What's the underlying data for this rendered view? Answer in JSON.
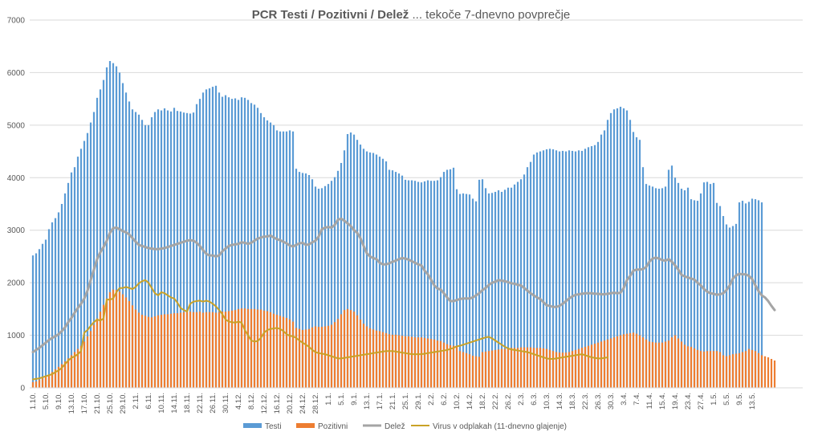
{
  "chart_data": {
    "type": "bar",
    "title_bold": "PCR Testi / Pozitivni / Delež",
    "title_rest": " ... tekoče 7-dnevno povprečje",
    "ylim": [
      0,
      7000
    ],
    "yticks": [
      "0",
      "1000",
      "2000",
      "3000",
      "4000",
      "5000",
      "6000",
      "7000"
    ],
    "colors": {
      "testi": "#5b9bd5",
      "pozitivni": "#ed7d31",
      "delez": "#a5a5a5",
      "virus": "#c9a227",
      "grid": "#d9d9d9",
      "text": "#595959"
    },
    "total_days": 232,
    "xtick_every": 4,
    "xtick_labels": [
      "1.10.",
      "5.10.",
      "9.10.",
      "13.10.",
      "17.10.",
      "21.10.",
      "25.10.",
      "29.10.",
      "2.11.",
      "6.11.",
      "10.11.",
      "14.11.",
      "18.11.",
      "22.11.",
      "26.11.",
      "30.11.",
      "4.12.",
      "8.12.",
      "12.12.",
      "16.12.",
      "20.12.",
      "24.12.",
      "28.12.",
      "1.1.",
      "5.1.",
      "9.1.",
      "13.1.",
      "17.1.",
      "21.1.",
      "25.1.",
      "29.1.",
      "2.2.",
      "6.2.",
      "10.2.",
      "14.2.",
      "18.2.",
      "22.2.",
      "26.2.",
      "2.3.",
      "6.3.",
      "10.3.",
      "14.3.",
      "18.3.",
      "22.3.",
      "26.3.",
      "30.3.",
      "3.4.",
      "7.4.",
      "11.4.",
      "15.4.",
      "19.4.",
      "23.4.",
      "27.4.",
      "1.5.",
      "5.5.",
      "9.5.",
      "13.5."
    ],
    "legend": [
      "Testi",
      "Pozitivni",
      "Delež",
      "Virus v odplakah (11-dnevno glajenje)"
    ],
    "series": [
      {
        "name": "Testi",
        "kind": "bar",
        "values": [
          2520,
          2560,
          2640,
          2740,
          2820,
          3020,
          3150,
          3230,
          3340,
          3500,
          3700,
          3900,
          4100,
          4200,
          4400,
          4550,
          4700,
          4850,
          5050,
          5250,
          5520,
          5680,
          5860,
          6100,
          6220,
          6180,
          6120,
          6000,
          5800,
          5620,
          5450,
          5300,
          5250,
          5200,
          5100,
          5000,
          5000,
          5150,
          5250,
          5300,
          5280,
          5320,
          5280,
          5260,
          5330,
          5270,
          5260,
          5240,
          5230,
          5220,
          5240,
          5400,
          5500,
          5620,
          5680,
          5700,
          5730,
          5750,
          5620,
          5540,
          5570,
          5530,
          5500,
          5510,
          5480,
          5530,
          5520,
          5480,
          5420,
          5390,
          5330,
          5230,
          5150,
          5090,
          5050,
          5000,
          4900,
          4880,
          4880,
          4880,
          4900,
          4880,
          4170,
          4110,
          4090,
          4080,
          4050,
          3970,
          3830,
          3790,
          3800,
          3840,
          3880,
          3940,
          4010,
          4130,
          4280,
          4520,
          4830,
          4860,
          4820,
          4720,
          4630,
          4550,
          4500,
          4480,
          4470,
          4440,
          4400,
          4360,
          4310,
          4150,
          4140,
          4110,
          4080,
          4040,
          3960,
          3950,
          3950,
          3940,
          3920,
          3910,
          3930,
          3950,
          3940,
          3940,
          3950,
          4010,
          4110,
          4150,
          4160,
          4190,
          3780,
          3690,
          3700,
          3690,
          3680,
          3600,
          3550,
          3960,
          3970,
          3800,
          3700,
          3710,
          3730,
          3760,
          3730,
          3770,
          3810,
          3810,
          3870,
          3920,
          3970,
          4060,
          4200,
          4300,
          4440,
          4480,
          4500,
          4520,
          4540,
          4550,
          4540,
          4520,
          4500,
          4510,
          4500,
          4520,
          4510,
          4500,
          4520,
          4510,
          4550,
          4580,
          4600,
          4620,
          4680,
          4820,
          4900,
          5100,
          5230,
          5300,
          5320,
          5350,
          5320,
          5280,
          5100,
          4870,
          4770,
          4720,
          4200,
          3880,
          3850,
          3830,
          3800,
          3790,
          3800,
          3830,
          4150,
          4230,
          4000,
          3900,
          3790,
          3760,
          3810,
          3590,
          3570,
          3560,
          3700,
          3910,
          3920,
          3880,
          3900,
          3520,
          3460,
          3270,
          3110,
          3050,
          3080,
          3120,
          3530,
          3560,
          3510,
          3540,
          3600,
          3590,
          3570,
          3530
        ]
      },
      {
        "name": "Pozitivni",
        "kind": "bar",
        "values": [
          110,
          120,
          150,
          180,
          210,
          250,
          300,
          350,
          400,
          450,
          500,
          560,
          620,
          680,
          740,
          800,
          880,
          980,
          1080,
          1200,
          1320,
          1450,
          1580,
          1700,
          1820,
          1870,
          1860,
          1830,
          1780,
          1720,
          1650,
          1570,
          1490,
          1430,
          1390,
          1370,
          1350,
          1340,
          1360,
          1380,
          1390,
          1400,
          1400,
          1410,
          1420,
          1420,
          1430,
          1440,
          1440,
          1450,
          1440,
          1440,
          1450,
          1430,
          1440,
          1440,
          1440,
          1430,
          1440,
          1450,
          1450,
          1460,
          1470,
          1480,
          1500,
          1510,
          1510,
          1500,
          1500,
          1500,
          1490,
          1490,
          1470,
          1460,
          1440,
          1410,
          1390,
          1370,
          1350,
          1330,
          1300,
          1260,
          1140,
          1120,
          1100,
          1110,
          1120,
          1150,
          1170,
          1160,
          1160,
          1170,
          1180,
          1200,
          1250,
          1310,
          1400,
          1480,
          1500,
          1480,
          1450,
          1380,
          1300,
          1220,
          1170,
          1130,
          1110,
          1090,
          1080,
          1060,
          1040,
          1020,
          1010,
          1010,
          1000,
          990,
          980,
          980,
          970,
          960,
          960,
          960,
          950,
          940,
          930,
          920,
          900,
          890,
          860,
          830,
          810,
          800,
          780,
          700,
          680,
          660,
          640,
          610,
          600,
          590,
          680,
          690,
          700,
          710,
          720,
          730,
          740,
          740,
          750,
          760,
          760,
          760,
          770,
          770,
          770,
          770,
          760,
          760,
          760,
          750,
          740,
          720,
          700,
          680,
          670,
          670,
          670,
          680,
          700,
          720,
          740,
          760,
          780,
          800,
          820,
          840,
          860,
          880,
          900,
          920,
          940,
          960,
          980,
          1000,
          1020,
          1030,
          1040,
          1050,
          1030,
          1000,
          960,
          920,
          880,
          870,
          860,
          860,
          860,
          880,
          900,
          960,
          1000,
          940,
          880,
          820,
          790,
          780,
          750,
          720,
          700,
          690,
          700,
          700,
          700,
          700,
          680,
          620,
          600,
          620,
          640,
          650,
          660,
          680,
          700,
          740,
          720,
          700,
          660,
          620,
          600,
          580,
          550,
          520
        ]
      },
      {
        "name": "Delež",
        "kind": "line",
        "values": [
          680,
          720,
          760,
          810,
          860,
          910,
          950,
          980,
          1020,
          1080,
          1150,
          1250,
          1330,
          1430,
          1520,
          1600,
          1700,
          1850,
          2050,
          2250,
          2450,
          2580,
          2680,
          2800,
          2950,
          3040,
          3050,
          3020,
          2980,
          2960,
          2920,
          2850,
          2780,
          2720,
          2700,
          2680,
          2660,
          2650,
          2640,
          2640,
          2650,
          2660,
          2680,
          2700,
          2720,
          2740,
          2760,
          2780,
          2800,
          2810,
          2800,
          2760,
          2700,
          2620,
          2550,
          2520,
          2520,
          2500,
          2520,
          2600,
          2650,
          2700,
          2720,
          2730,
          2740,
          2770,
          2760,
          2740,
          2760,
          2800,
          2840,
          2860,
          2880,
          2880,
          2900,
          2860,
          2830,
          2810,
          2780,
          2750,
          2710,
          2690,
          2720,
          2750,
          2760,
          2720,
          2730,
          2770,
          2800,
          2880,
          3020,
          3050,
          3060,
          3050,
          3100,
          3200,
          3220,
          3180,
          3130,
          3080,
          3000,
          2950,
          2850,
          2700,
          2560,
          2500,
          2470,
          2450,
          2380,
          2350,
          2350,
          2370,
          2400,
          2420,
          2450,
          2470,
          2460,
          2440,
          2410,
          2380,
          2350,
          2330,
          2230,
          2160,
          2060,
          1950,
          1890,
          1870,
          1800,
          1720,
          1650,
          1650,
          1670,
          1690,
          1700,
          1700,
          1700,
          1720,
          1760,
          1800,
          1860,
          1900,
          1960,
          2000,
          2020,
          2050,
          2040,
          2030,
          2010,
          1990,
          1980,
          1960,
          1950,
          1900,
          1850,
          1800,
          1760,
          1720,
          1690,
          1630,
          1570,
          1560,
          1540,
          1540,
          1560,
          1600,
          1650,
          1700,
          1740,
          1770,
          1780,
          1790,
          1800,
          1800,
          1800,
          1790,
          1790,
          1780,
          1780,
          1790,
          1800,
          1810,
          1800,
          1810,
          1900,
          2050,
          2130,
          2230,
          2250,
          2250,
          2260,
          2300,
          2400,
          2460,
          2480,
          2460,
          2430,
          2420,
          2450,
          2400,
          2330,
          2250,
          2150,
          2120,
          2100,
          2080,
          2060,
          2000,
          1950,
          1880,
          1830,
          1800,
          1790,
          1770,
          1780,
          1800,
          1860,
          1950,
          2080,
          2140,
          2170,
          2160,
          2160,
          2130,
          2070,
          1950,
          1840,
          1760,
          1720,
          1650,
          1560,
          1480
        ]
      },
      {
        "name": "Virus v odplakah (11-dnevno glajenje)",
        "kind": "line",
        "values": [
          160,
          170,
          180,
          200,
          220,
          240,
          260,
          300,
          330,
          380,
          450,
          520,
          570,
          600,
          640,
          700,
          1050,
          1100,
          1180,
          1250,
          1300,
          1280,
          1320,
          1680,
          1680,
          1700,
          1820,
          1900,
          1900,
          1920,
          1900,
          1880,
          1920,
          1990,
          2030,
          2050,
          2000,
          1900,
          1800,
          1760,
          1820,
          1800,
          1760,
          1720,
          1700,
          1620,
          1520,
          1480,
          1450,
          1600,
          1640,
          1650,
          1660,
          1640,
          1660,
          1640,
          1600,
          1550,
          1480,
          1400,
          1300,
          1260,
          1250,
          1240,
          1260,
          1240,
          1100,
          1000,
          900,
          880,
          890,
          950,
          1050,
          1100,
          1120,
          1130,
          1140,
          1120,
          1080,
          1020,
          990,
          980,
          950,
          900,
          860,
          820,
          780,
          720,
          680,
          660,
          650,
          640,
          620,
          600,
          580,
          560,
          560,
          570,
          580,
          590,
          600,
          610,
          620,
          630,
          640,
          650,
          660,
          670,
          680,
          690,
          700,
          700,
          700,
          690,
          680,
          670,
          660,
          650,
          640,
          640,
          640,
          640,
          650,
          660,
          670,
          680,
          690,
          700,
          710,
          720,
          740,
          760,
          790,
          800,
          820,
          840,
          860,
          880,
          900,
          920,
          940,
          960,
          970,
          940,
          900,
          860,
          820,
          780,
          750,
          730,
          720,
          710,
          700,
          690,
          680,
          660,
          640,
          620,
          600,
          580,
          560,
          550,
          550,
          560,
          570,
          580,
          590,
          600,
          610,
          620,
          630,
          640,
          620,
          600,
          580,
          570,
          560,
          560,
          570,
          580
        ]
      }
    ]
  }
}
